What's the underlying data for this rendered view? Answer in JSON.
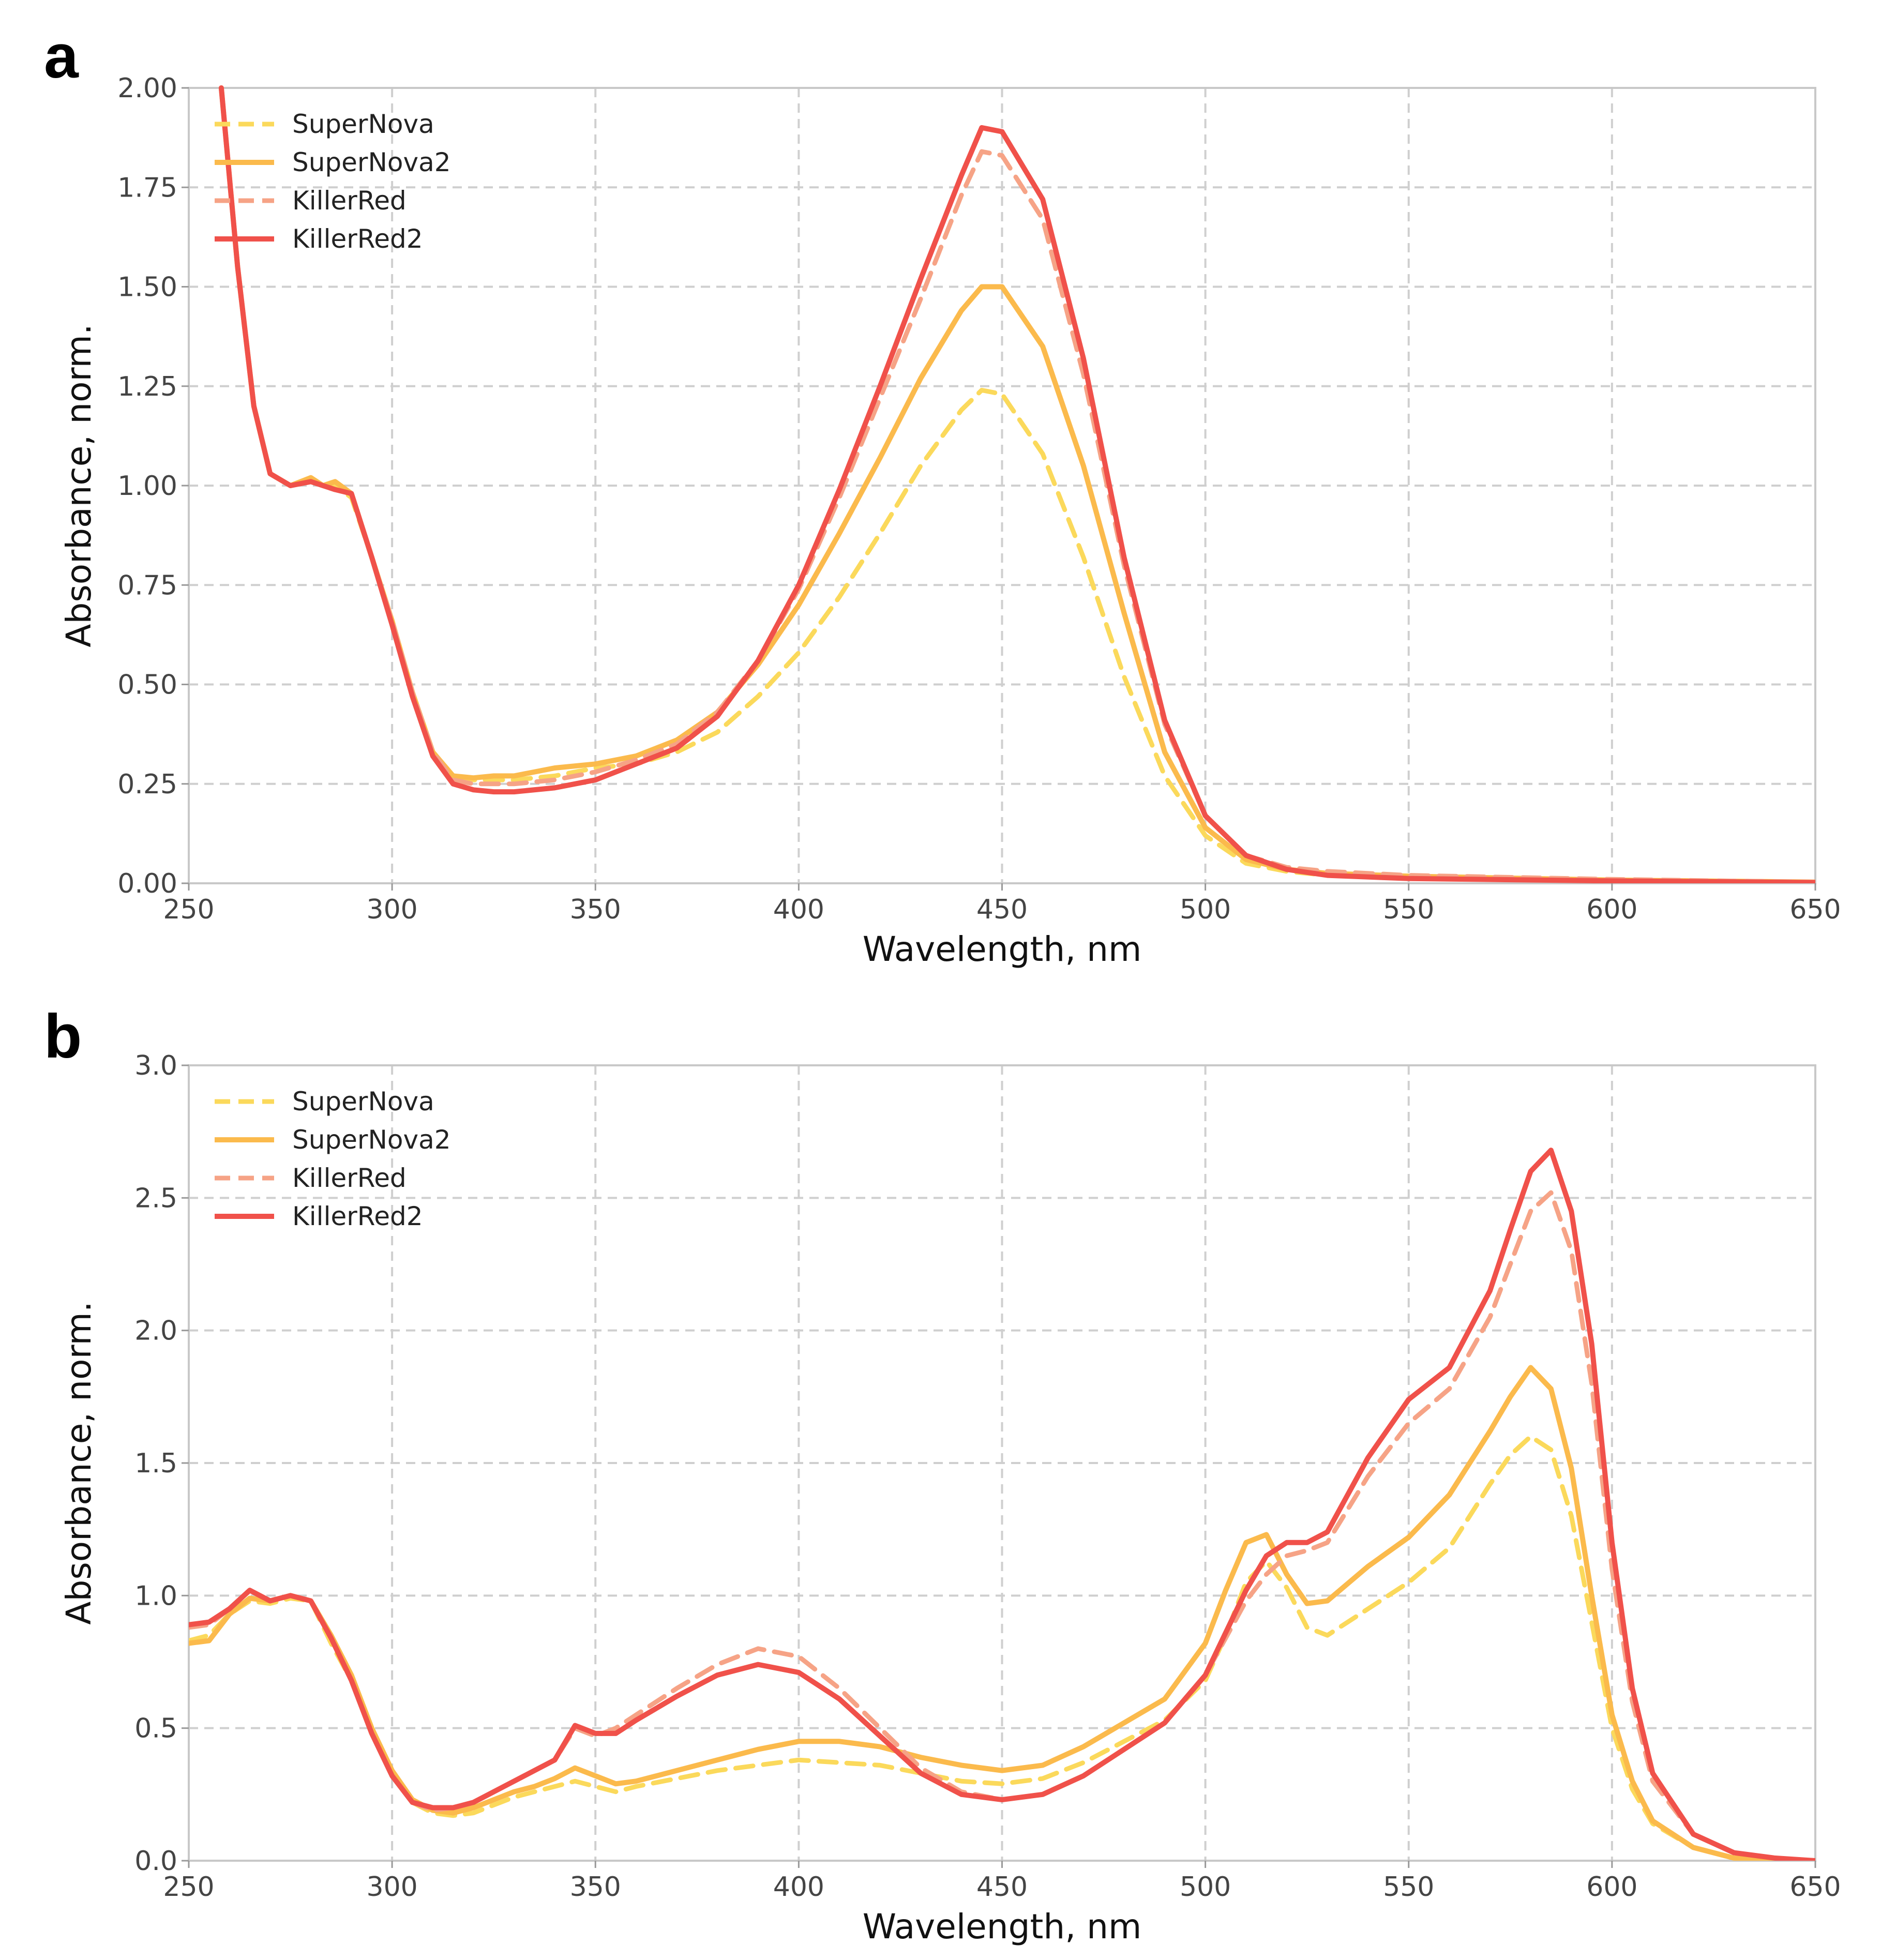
{
  "colors": {
    "SuperNova": "#FBD95B",
    "SuperNova2": "#FBBA4C",
    "KillerRed": "#F6A386",
    "KillerRed2": "#F0514A"
  },
  "chart_data": [
    {
      "panel": "a",
      "type": "line",
      "title": "",
      "xlabel": "Wavelength, nm",
      "ylabel": "Absorbance, norm.",
      "xlim": [
        250,
        650
      ],
      "ylim": [
        0,
        2
      ],
      "x_ticks": [
        250,
        300,
        350,
        400,
        450,
        500,
        550,
        600,
        650
      ],
      "x_tick_labels": [
        "250",
        "300",
        "350",
        "400",
        "450",
        "500",
        "550",
        "600",
        "650"
      ],
      "y_ticks": [
        0,
        0.25,
        0.5,
        0.75,
        1.0,
        1.25,
        1.5,
        1.75,
        2.0
      ],
      "y_tick_labels": [
        "0.00",
        "0.25",
        "0.50",
        "0.75",
        "1.00",
        "1.25",
        "1.50",
        "1.75",
        "2.00"
      ],
      "grid": true,
      "legend_position": "top-left",
      "x": [
        258,
        262,
        266,
        270,
        275,
        280,
        283,
        286,
        290,
        295,
        300,
        305,
        310,
        315,
        320,
        325,
        330,
        340,
        350,
        360,
        370,
        380,
        390,
        400,
        410,
        420,
        430,
        440,
        445,
        450,
        460,
        470,
        480,
        490,
        500,
        510,
        520,
        530,
        550,
        600,
        650
      ],
      "series": [
        {
          "name": "SuperNova",
          "style": "dashed",
          "values": [
            2.0,
            1.55,
            1.2,
            1.03,
            1.0,
            1.01,
            1.0,
            1.0,
            0.97,
            0.82,
            0.66,
            0.48,
            0.33,
            0.27,
            0.26,
            0.26,
            0.26,
            0.27,
            0.29,
            0.3,
            0.33,
            0.38,
            0.47,
            0.58,
            0.72,
            0.88,
            1.05,
            1.19,
            1.24,
            1.23,
            1.08,
            0.82,
            0.52,
            0.27,
            0.12,
            0.05,
            0.03,
            0.02,
            0.015,
            0.008,
            0.003
          ]
        },
        {
          "name": "SuperNova2",
          "style": "solid",
          "values": [
            2.0,
            1.55,
            1.2,
            1.03,
            1.0,
            1.02,
            1.0,
            1.01,
            0.98,
            0.82,
            0.66,
            0.48,
            0.33,
            0.27,
            0.265,
            0.27,
            0.27,
            0.29,
            0.3,
            0.32,
            0.36,
            0.43,
            0.55,
            0.7,
            0.88,
            1.07,
            1.27,
            1.44,
            1.5,
            1.5,
            1.35,
            1.05,
            0.68,
            0.33,
            0.14,
            0.06,
            0.035,
            0.025,
            0.018,
            0.008,
            0.003
          ]
        },
        {
          "name": "KillerRed",
          "style": "dashed",
          "values": [
            2.0,
            1.55,
            1.2,
            1.03,
            1.0,
            1.01,
            1.0,
            0.99,
            0.98,
            0.82,
            0.66,
            0.48,
            0.33,
            0.26,
            0.25,
            0.25,
            0.25,
            0.26,
            0.28,
            0.31,
            0.35,
            0.43,
            0.56,
            0.74,
            0.97,
            1.22,
            1.47,
            1.73,
            1.84,
            1.83,
            1.67,
            1.28,
            0.8,
            0.4,
            0.17,
            0.07,
            0.04,
            0.03,
            0.02,
            0.01,
            0.003
          ]
        },
        {
          "name": "KillerRed2",
          "style": "solid",
          "values": [
            2.0,
            1.55,
            1.2,
            1.03,
            1.0,
            1.01,
            1.0,
            0.99,
            0.98,
            0.82,
            0.65,
            0.47,
            0.32,
            0.25,
            0.235,
            0.23,
            0.23,
            0.24,
            0.26,
            0.3,
            0.34,
            0.42,
            0.56,
            0.75,
            0.99,
            1.25,
            1.52,
            1.78,
            1.9,
            1.89,
            1.72,
            1.32,
            0.82,
            0.41,
            0.17,
            0.07,
            0.035,
            0.02,
            0.012,
            0.006,
            0.002
          ]
        }
      ]
    },
    {
      "panel": "b",
      "type": "line",
      "title": "",
      "xlabel": "Wavelength, nm",
      "ylabel": "Absorbance, norm.",
      "xlim": [
        250,
        650
      ],
      "ylim": [
        0,
        3
      ],
      "x_ticks": [
        250,
        300,
        350,
        400,
        450,
        500,
        550,
        600,
        650
      ],
      "x_tick_labels": [
        "250",
        "300",
        "350",
        "400",
        "450",
        "500",
        "550",
        "600",
        "650"
      ],
      "y_ticks": [
        0,
        0.5,
        1.0,
        1.5,
        2.0,
        2.5,
        3.0
      ],
      "y_tick_labels": [
        "0.0",
        "0.5",
        "1.0",
        "1.5",
        "2.0",
        "2.5",
        "3.0"
      ],
      "grid": true,
      "legend_position": "top-left",
      "x": [
        250,
        255,
        260,
        265,
        270,
        275,
        280,
        285,
        290,
        295,
        300,
        305,
        310,
        315,
        320,
        325,
        330,
        335,
        340,
        345,
        350,
        355,
        360,
        370,
        380,
        390,
        400,
        410,
        420,
        430,
        440,
        450,
        460,
        470,
        480,
        490,
        500,
        505,
        510,
        515,
        520,
        525,
        530,
        540,
        550,
        560,
        570,
        575,
        580,
        585,
        590,
        595,
        600,
        605,
        610,
        620,
        630,
        640,
        650
      ],
      "series": [
        {
          "name": "SuperNova",
          "style": "dashed",
          "values": [
            0.83,
            0.85,
            0.93,
            0.98,
            0.97,
            0.99,
            0.98,
            0.82,
            0.68,
            0.48,
            0.32,
            0.22,
            0.18,
            0.17,
            0.18,
            0.21,
            0.24,
            0.26,
            0.28,
            0.3,
            0.28,
            0.26,
            0.28,
            0.31,
            0.34,
            0.36,
            0.38,
            0.37,
            0.36,
            0.33,
            0.3,
            0.29,
            0.31,
            0.37,
            0.45,
            0.53,
            0.68,
            0.85,
            1.05,
            1.13,
            1.03,
            0.88,
            0.85,
            0.95,
            1.05,
            1.18,
            1.42,
            1.53,
            1.6,
            1.55,
            1.3,
            0.9,
            0.5,
            0.27,
            0.14,
            0.05,
            0.01,
            0.003,
            0.0
          ]
        },
        {
          "name": "SuperNova2",
          "style": "solid",
          "values": [
            0.82,
            0.83,
            0.93,
            0.99,
            0.98,
            1.0,
            0.98,
            0.85,
            0.7,
            0.5,
            0.34,
            0.23,
            0.19,
            0.18,
            0.2,
            0.23,
            0.26,
            0.28,
            0.31,
            0.35,
            0.32,
            0.29,
            0.3,
            0.34,
            0.38,
            0.42,
            0.45,
            0.45,
            0.43,
            0.39,
            0.36,
            0.34,
            0.36,
            0.43,
            0.52,
            0.61,
            0.82,
            1.02,
            1.2,
            1.23,
            1.08,
            0.97,
            0.98,
            1.11,
            1.22,
            1.38,
            1.62,
            1.75,
            1.86,
            1.78,
            1.48,
            1.0,
            0.55,
            0.3,
            0.15,
            0.05,
            0.01,
            0.003,
            0.0
          ]
        },
        {
          "name": "KillerRed",
          "style": "dashed",
          "values": [
            0.88,
            0.89,
            0.95,
            1.02,
            0.98,
            1.0,
            0.98,
            0.84,
            0.68,
            0.48,
            0.32,
            0.22,
            0.19,
            0.2,
            0.22,
            0.26,
            0.3,
            0.34,
            0.38,
            0.5,
            0.47,
            0.5,
            0.55,
            0.65,
            0.74,
            0.8,
            0.77,
            0.65,
            0.5,
            0.35,
            0.26,
            0.23,
            0.25,
            0.32,
            0.42,
            0.52,
            0.7,
            0.84,
            0.98,
            1.08,
            1.15,
            1.17,
            1.2,
            1.45,
            1.65,
            1.78,
            2.05,
            2.25,
            2.45,
            2.52,
            2.3,
            1.8,
            1.1,
            0.6,
            0.3,
            0.1,
            0.03,
            0.01,
            0.0
          ]
        },
        {
          "name": "KillerRed2",
          "style": "solid",
          "values": [
            0.89,
            0.9,
            0.95,
            1.02,
            0.98,
            1.0,
            0.98,
            0.84,
            0.68,
            0.48,
            0.32,
            0.22,
            0.2,
            0.2,
            0.22,
            0.26,
            0.3,
            0.34,
            0.38,
            0.51,
            0.48,
            0.48,
            0.53,
            0.62,
            0.7,
            0.74,
            0.71,
            0.61,
            0.47,
            0.33,
            0.25,
            0.23,
            0.25,
            0.32,
            0.42,
            0.52,
            0.7,
            0.86,
            1.02,
            1.15,
            1.2,
            1.2,
            1.24,
            1.52,
            1.74,
            1.86,
            2.15,
            2.38,
            2.6,
            2.68,
            2.45,
            1.95,
            1.2,
            0.65,
            0.33,
            0.1,
            0.03,
            0.01,
            0.0
          ]
        }
      ]
    }
  ]
}
